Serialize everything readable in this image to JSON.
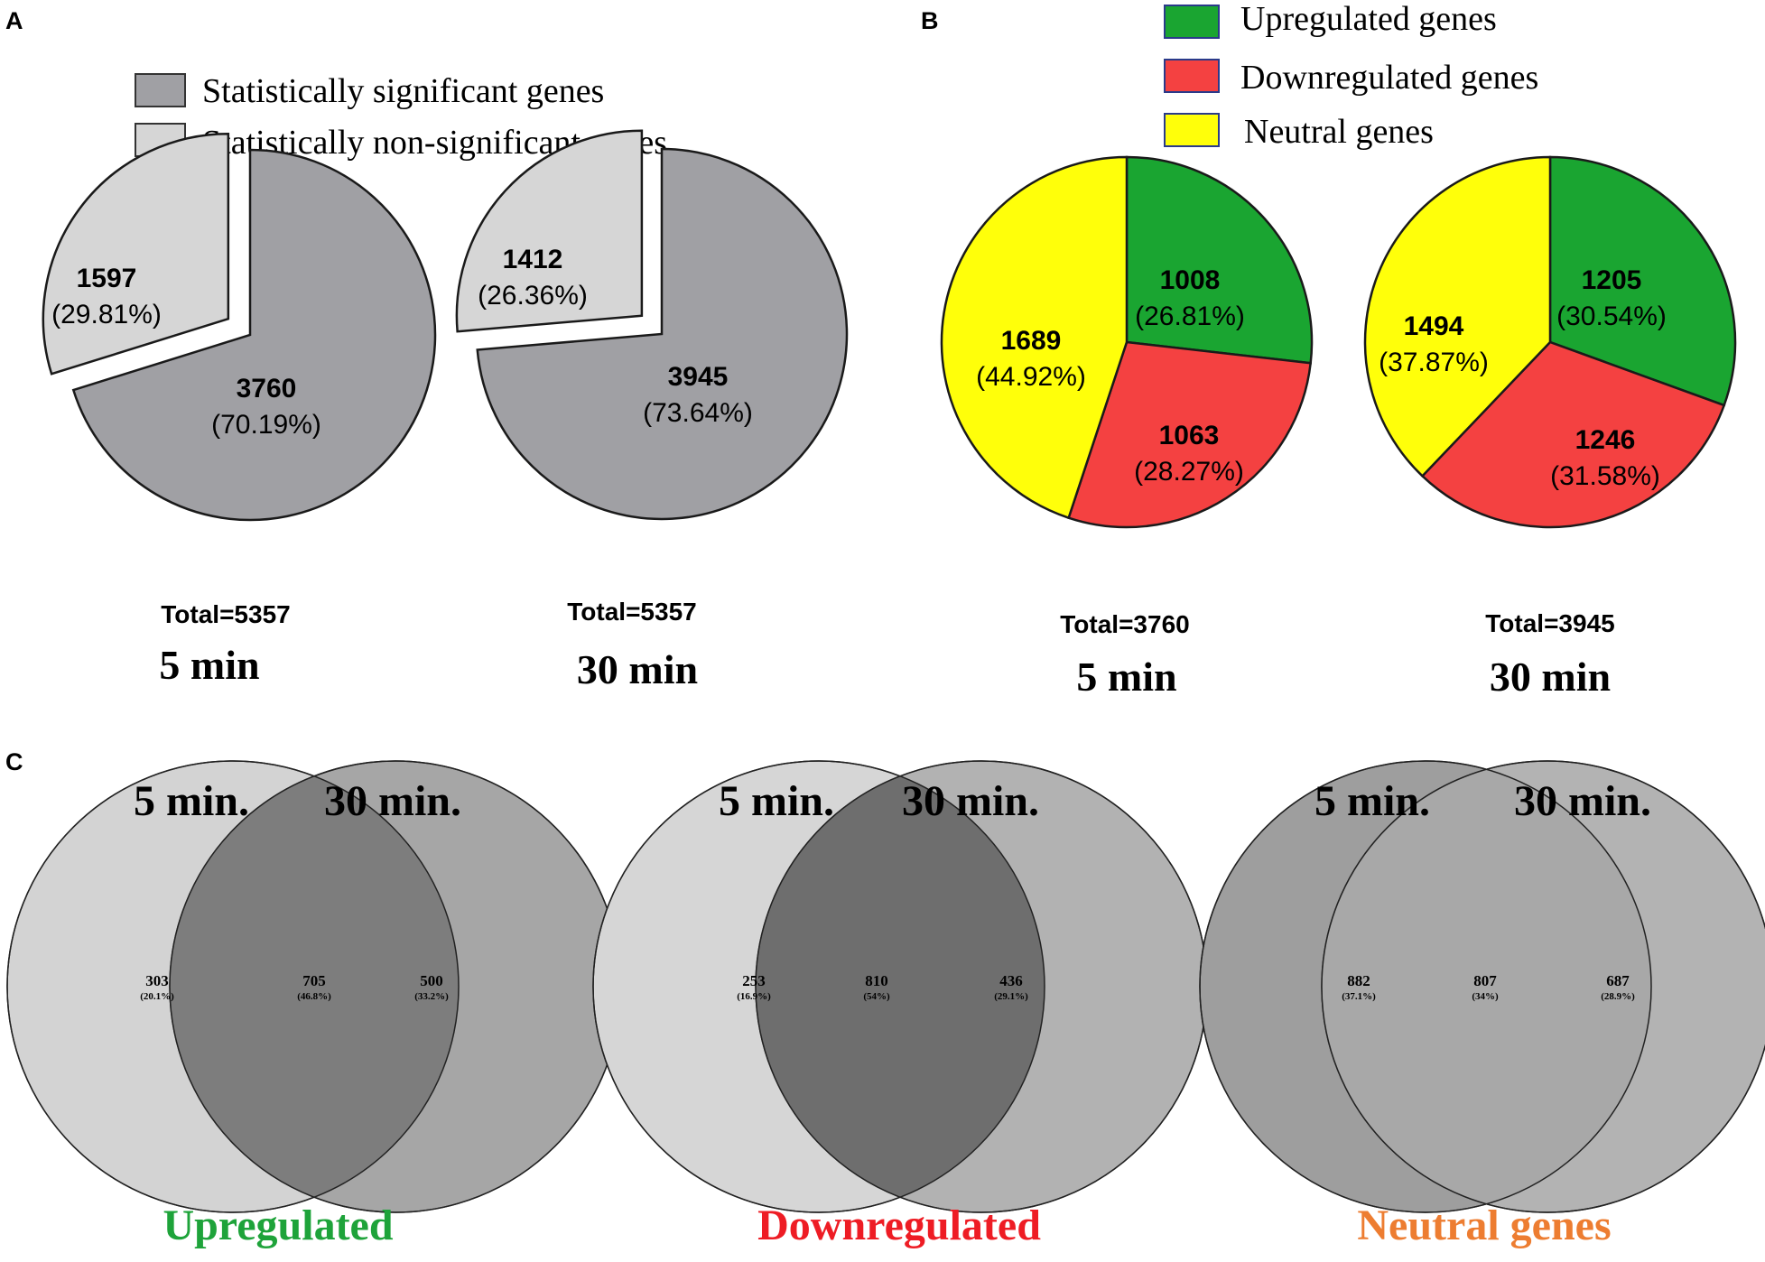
{
  "panels": [
    {
      "letter": "A"
    },
    {
      "letter": "B"
    },
    {
      "letter": "C"
    }
  ],
  "legend_a": [
    {
      "label": "Statistically significant genes",
      "color": "#a0a0a4"
    },
    {
      "label": "Statistically non-significant genes",
      "color": "#d6d6d6"
    }
  ],
  "legend_b": [
    {
      "label": "Upregulated genes",
      "color": "#1aa531"
    },
    {
      "label": "Downregulated genes",
      "color": "#f44141"
    },
    {
      "label": "Neutral genes",
      "color": "#ffff0a"
    }
  ],
  "chart_data": [
    {
      "type": "pie",
      "panel": "A",
      "title": "5 min",
      "total_label": "Total=5357",
      "slices": [
        {
          "name": "Statistically significant genes",
          "count": "3760",
          "pct": "(70.19%)",
          "value": 70.19,
          "color": "#a0a0a4",
          "exploded": false
        },
        {
          "name": "Statistically non-significant genes",
          "count": "1597",
          "pct": "(29.81%)",
          "value": 29.81,
          "color": "#d6d6d6",
          "exploded": true
        }
      ]
    },
    {
      "type": "pie",
      "panel": "A",
      "title": "30 min",
      "total_label": "Total=5357",
      "slices": [
        {
          "name": "Statistically significant genes",
          "count": "3945",
          "pct": "(73.64%)",
          "value": 73.64,
          "color": "#a0a0a4",
          "exploded": false
        },
        {
          "name": "Statistically non-significant genes",
          "count": "1412",
          "pct": "(26.36%)",
          "value": 26.36,
          "color": "#d6d6d6",
          "exploded": true
        }
      ]
    },
    {
      "type": "pie",
      "panel": "B",
      "title": "5 min",
      "total_label": "Total=3760",
      "slices": [
        {
          "name": "Upregulated genes",
          "count": "1008",
          "pct": "(26.81%)",
          "value": 26.81,
          "color": "#1aa531"
        },
        {
          "name": "Downregulated genes",
          "count": "1063",
          "pct": "(28.27%)",
          "value": 28.27,
          "color": "#f44141"
        },
        {
          "name": "Neutral genes",
          "count": "1689",
          "pct": "(44.92%)",
          "value": 44.92,
          "color": "#ffff0a"
        }
      ]
    },
    {
      "type": "pie",
      "panel": "B",
      "title": "30 min",
      "total_label": "Total=3945",
      "slices": [
        {
          "name": "Upregulated genes",
          "count": "1205",
          "pct": "(30.54%)",
          "value": 30.54,
          "color": "#1aa531"
        },
        {
          "name": "Downregulated genes",
          "count": "1246",
          "pct": "(31.58%)",
          "value": 31.58,
          "color": "#f44141"
        },
        {
          "name": "Neutral genes",
          "count": "1494",
          "pct": "(37.87%)",
          "value": 37.87,
          "color": "#ffff0a"
        }
      ]
    },
    {
      "type": "venn",
      "panel": "C",
      "title": "Upregulated",
      "title_color": "#1ea33a",
      "set_labels": [
        "5 min.",
        "30 min."
      ],
      "left_color": "#d3d3d3",
      "right_color": "#a6a6a6",
      "overlap_color": "#7d7d7d",
      "overlap_text_color": "#ffffff",
      "regions": [
        {
          "count": "303",
          "pct": "(20.1%)"
        },
        {
          "count": "705",
          "pct": "(46.8%)"
        },
        {
          "count": "500",
          "pct": "(33.2%)"
        }
      ]
    },
    {
      "type": "venn",
      "panel": "C",
      "title": "Downregulated",
      "title_color": "#ee1c24",
      "set_labels": [
        "5 min.",
        "30 min."
      ],
      "left_color": "#d6d6d6",
      "right_color": "#b2b2b2",
      "overlap_color": "#6e6e6e",
      "overlap_text_color": "#ffffff",
      "regions": [
        {
          "count": "253",
          "pct": "(16.9%)"
        },
        {
          "count": "810",
          "pct": "(54%)"
        },
        {
          "count": "436",
          "pct": "(29.1%)"
        }
      ]
    },
    {
      "type": "venn",
      "panel": "C",
      "title": "Neutral genes",
      "title_color": "#ed7d31",
      "set_labels": [
        "5 min.",
        "30 min."
      ],
      "left_color": "#9e9e9e",
      "right_color": "#b3b3b3",
      "overlap_color": "#a8a8a8",
      "overlap_text_color": "#000000",
      "regions": [
        {
          "count": "882",
          "pct": "(37.1%)"
        },
        {
          "count": "807",
          "pct": "(34%)"
        },
        {
          "count": "687",
          "pct": "(28.9%)"
        }
      ]
    }
  ]
}
